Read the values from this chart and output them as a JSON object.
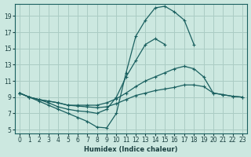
{
  "xlabel": "Humidex (Indice chaleur)",
  "bg_color": "#cce8e0",
  "grid_color": "#aaccc4",
  "line_color": "#1a6060",
  "xlim": [
    -0.5,
    23.5
  ],
  "ylim": [
    4.5,
    20.5
  ],
  "xticks": [
    0,
    1,
    2,
    3,
    4,
    5,
    6,
    7,
    8,
    9,
    10,
    11,
    12,
    13,
    14,
    15,
    16,
    17,
    18,
    19,
    20,
    21,
    22,
    23
  ],
  "yticks": [
    5,
    7,
    9,
    11,
    13,
    15,
    17,
    19
  ],
  "lines": [
    {
      "x": [
        0,
        1,
        2,
        3,
        4,
        5,
        6,
        7,
        8,
        9,
        10,
        11,
        12,
        13,
        14,
        15,
        16,
        17,
        18,
        19,
        20,
        21,
        22,
        23
      ],
      "y": [
        9.5,
        9.0,
        8.5,
        8.0,
        7.5,
        7.0,
        6.5,
        6.0,
        5.3,
        5.2,
        7.0,
        12.0,
        16.5,
        18.5,
        20.0,
        20.2,
        19.5,
        18.5,
        15.5,
        null,
        null,
        null,
        null,
        null
      ]
    },
    {
      "x": [
        0,
        1,
        2,
        3,
        4,
        5,
        6,
        7,
        8,
        9,
        10,
        11,
        12,
        13,
        14,
        15,
        16,
        17,
        18,
        19,
        20,
        21,
        22,
        23
      ],
      "y": [
        9.5,
        9.0,
        8.7,
        8.3,
        7.8,
        7.5,
        7.3,
        7.2,
        7.0,
        7.5,
        9.0,
        11.5,
        13.5,
        15.5,
        16.2,
        15.5,
        null,
        null,
        null,
        null,
        null,
        null,
        null,
        null
      ]
    },
    {
      "x": [
        0,
        1,
        2,
        3,
        4,
        5,
        6,
        7,
        8,
        9,
        10,
        11,
        12,
        13,
        14,
        15,
        16,
        17,
        18,
        19,
        20,
        21,
        22,
        23
      ],
      "y": [
        9.5,
        9.0,
        8.7,
        8.5,
        8.3,
        8.0,
        8.0,
        8.0,
        8.0,
        8.3,
        8.8,
        9.5,
        10.3,
        11.0,
        11.5,
        12.0,
        12.5,
        12.8,
        12.5,
        11.5,
        9.5,
        9.3,
        9.1,
        9.0
      ]
    },
    {
      "x": [
        0,
        1,
        2,
        3,
        4,
        5,
        6,
        7,
        8,
        9,
        10,
        11,
        12,
        13,
        14,
        15,
        16,
        17,
        18,
        19,
        20,
        21,
        22,
        23
      ],
      "y": [
        9.5,
        9.0,
        8.7,
        8.5,
        8.3,
        8.0,
        7.9,
        7.8,
        7.7,
        7.8,
        8.2,
        8.7,
        9.2,
        9.5,
        9.8,
        10.0,
        10.2,
        10.5,
        10.5,
        10.3,
        9.5,
        9.3,
        9.1,
        9.0
      ]
    }
  ]
}
